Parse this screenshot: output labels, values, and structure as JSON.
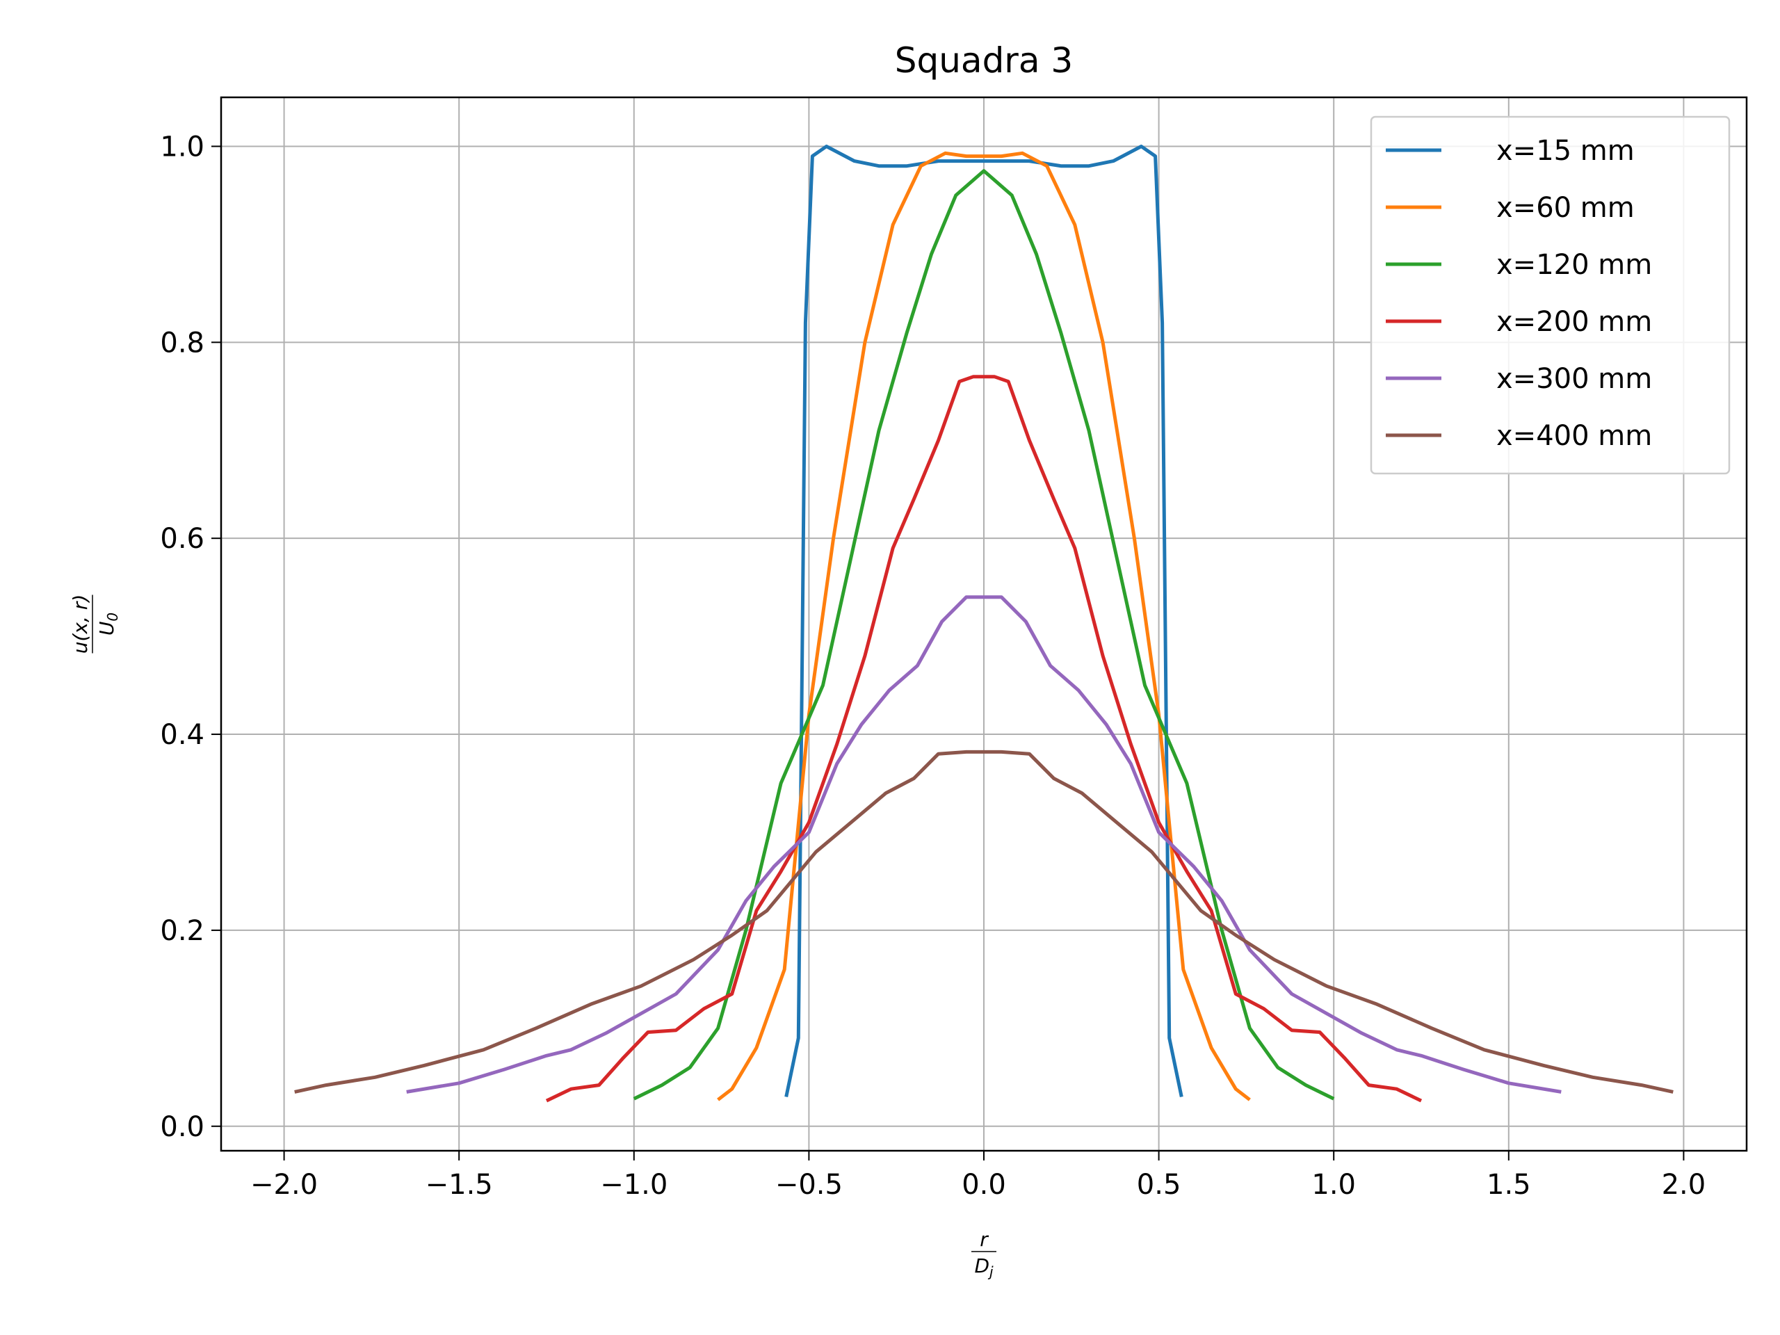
{
  "chart_data": {
    "type": "line",
    "title": "Squadra 3",
    "xlabel": {
      "numerator": "r",
      "denominator": "D",
      "denominator_sub": "j"
    },
    "ylabel": {
      "numerator": "u(x, r)",
      "denominator": "U",
      "denominator_sub": "0"
    },
    "xlim": [
      -2.18,
      2.18
    ],
    "ylim": [
      -0.025,
      1.05
    ],
    "xticks": [
      -2.0,
      -1.5,
      -1.0,
      -0.5,
      0.0,
      0.5,
      1.0,
      1.5,
      2.0
    ],
    "xtick_labels": [
      "−2.0",
      "−1.5",
      "−1.0",
      "−0.5",
      "0.0",
      "0.5",
      "1.0",
      "1.5",
      "2.0"
    ],
    "yticks": [
      0.0,
      0.2,
      0.4,
      0.6,
      0.8,
      1.0
    ],
    "ytick_labels": [
      "0.0",
      "0.2",
      "0.4",
      "0.6",
      "0.8",
      "1.0"
    ],
    "grid": true,
    "legend_position": "top-right",
    "series": [
      {
        "name": "x=15 mm",
        "color": "#1f77b4",
        "x": [
          -0.565,
          -0.53,
          -0.51,
          -0.49,
          -0.45,
          -0.37,
          -0.3,
          -0.22,
          -0.13,
          0.0,
          0.13,
          0.22,
          0.3,
          0.37,
          0.45,
          0.49,
          0.51,
          0.53,
          0.565
        ],
        "y": [
          0.03,
          0.09,
          0.82,
          0.99,
          1.0,
          0.985,
          0.98,
          0.98,
          0.985,
          0.985,
          0.985,
          0.98,
          0.98,
          0.985,
          1.0,
          0.99,
          0.82,
          0.09,
          0.03
        ]
      },
      {
        "name": "x=60 mm",
        "color": "#ff7f0e",
        "x": [
          -0.76,
          -0.72,
          -0.65,
          -0.57,
          -0.5,
          -0.43,
          -0.34,
          -0.26,
          -0.18,
          -0.11,
          -0.05,
          0.0,
          0.05,
          0.11,
          0.18,
          0.26,
          0.34,
          0.43,
          0.5,
          0.57,
          0.65,
          0.72,
          0.76
        ],
        "y": [
          0.027,
          0.038,
          0.08,
          0.16,
          0.42,
          0.6,
          0.8,
          0.92,
          0.98,
          0.993,
          0.99,
          0.99,
          0.99,
          0.993,
          0.98,
          0.92,
          0.8,
          0.6,
          0.42,
          0.16,
          0.08,
          0.038,
          0.027
        ]
      },
      {
        "name": "x=120 mm",
        "color": "#2ca02c",
        "x": [
          -1.0,
          -0.92,
          -0.84,
          -0.76,
          -0.68,
          -0.58,
          -0.46,
          -0.38,
          -0.3,
          -0.22,
          -0.15,
          -0.08,
          0.0,
          0.08,
          0.15,
          0.22,
          0.3,
          0.38,
          0.46,
          0.58,
          0.68,
          0.76,
          0.84,
          0.92,
          1.0
        ],
        "y": [
          0.028,
          0.042,
          0.06,
          0.1,
          0.2,
          0.35,
          0.45,
          0.58,
          0.71,
          0.81,
          0.89,
          0.95,
          0.975,
          0.95,
          0.89,
          0.81,
          0.71,
          0.58,
          0.45,
          0.35,
          0.2,
          0.1,
          0.06,
          0.042,
          0.028
        ]
      },
      {
        "name": "x=200 mm",
        "color": "#d62728",
        "x": [
          -1.25,
          -1.18,
          -1.1,
          -1.03,
          -0.96,
          -0.88,
          -0.8,
          -0.72,
          -0.65,
          -0.58,
          -0.5,
          -0.42,
          -0.34,
          -0.26,
          -0.2,
          -0.13,
          -0.07,
          -0.03,
          0.03,
          0.07,
          0.13,
          0.2,
          0.26,
          0.34,
          0.42,
          0.5,
          0.58,
          0.65,
          0.72,
          0.8,
          0.88,
          0.96,
          1.03,
          1.1,
          1.18,
          1.25
        ],
        "y": [
          0.026,
          0.038,
          0.042,
          0.07,
          0.096,
          0.098,
          0.12,
          0.135,
          0.22,
          0.26,
          0.31,
          0.39,
          0.48,
          0.59,
          0.64,
          0.7,
          0.76,
          0.765,
          0.765,
          0.76,
          0.7,
          0.64,
          0.59,
          0.48,
          0.39,
          0.31,
          0.26,
          0.22,
          0.135,
          0.12,
          0.098,
          0.096,
          0.07,
          0.042,
          0.038,
          0.026
        ]
      },
      {
        "name": "x=300 mm",
        "color": "#9467bd",
        "x": [
          -1.65,
          -1.5,
          -1.37,
          -1.25,
          -1.18,
          -1.08,
          -0.98,
          -0.88,
          -0.76,
          -0.68,
          -0.6,
          -0.5,
          -0.42,
          -0.35,
          -0.27,
          -0.19,
          -0.12,
          -0.05,
          0.05,
          0.12,
          0.19,
          0.27,
          0.35,
          0.42,
          0.5,
          0.6,
          0.68,
          0.76,
          0.88,
          0.98,
          1.08,
          1.18,
          1.25,
          1.37,
          1.5,
          1.65
        ],
        "y": [
          0.035,
          0.044,
          0.058,
          0.072,
          0.078,
          0.095,
          0.115,
          0.135,
          0.18,
          0.23,
          0.265,
          0.3,
          0.37,
          0.41,
          0.445,
          0.47,
          0.515,
          0.54,
          0.54,
          0.515,
          0.47,
          0.445,
          0.41,
          0.37,
          0.3,
          0.265,
          0.23,
          0.18,
          0.135,
          0.115,
          0.095,
          0.078,
          0.072,
          0.058,
          0.044,
          0.035
        ]
      },
      {
        "name": "x=400 mm",
        "color": "#8c564b",
        "x": [
          -1.97,
          -1.88,
          -1.74,
          -1.6,
          -1.43,
          -1.28,
          -1.12,
          -0.98,
          -0.83,
          -0.72,
          -0.62,
          -0.48,
          -0.38,
          -0.28,
          -0.2,
          -0.13,
          -0.05,
          0.0,
          0.05,
          0.13,
          0.2,
          0.28,
          0.38,
          0.48,
          0.62,
          0.72,
          0.83,
          0.98,
          1.12,
          1.28,
          1.43,
          1.6,
          1.74,
          1.88,
          1.97
        ],
        "y": [
          0.035,
          0.042,
          0.05,
          0.062,
          0.078,
          0.1,
          0.125,
          0.143,
          0.17,
          0.195,
          0.22,
          0.28,
          0.31,
          0.34,
          0.355,
          0.38,
          0.382,
          0.382,
          0.382,
          0.38,
          0.355,
          0.34,
          0.31,
          0.28,
          0.22,
          0.195,
          0.17,
          0.143,
          0.125,
          0.1,
          0.078,
          0.062,
          0.05,
          0.042,
          0.035
        ]
      }
    ]
  }
}
